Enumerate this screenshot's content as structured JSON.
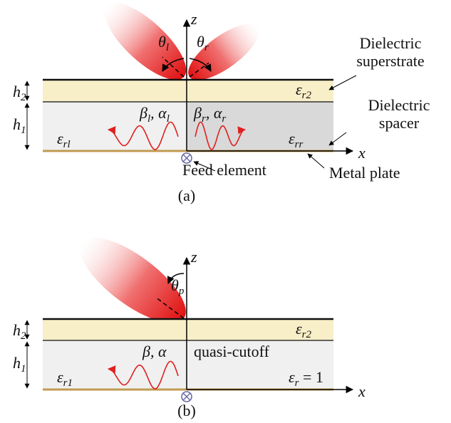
{
  "panel_a": {
    "caption": "(a)",
    "z": "z",
    "x": "x",
    "theta_l": [
      "θ",
      "l"
    ],
    "theta_r": [
      "θ",
      "r"
    ],
    "superstrate": [
      "Dielectric",
      "superstrate"
    ],
    "spacer": [
      "Dielectric",
      "spacer"
    ],
    "h2": [
      "h",
      "2"
    ],
    "h1": [
      "h",
      "1"
    ],
    "eps_r2": [
      "ε",
      "r2"
    ],
    "beta_l": [
      "β",
      "l",
      ", α",
      "l"
    ],
    "beta_r": [
      "β",
      "r",
      ", α",
      "r"
    ],
    "eps_rl": [
      "ε",
      "rl"
    ],
    "eps_rr": [
      "ε",
      "rr"
    ],
    "feed": "Feed element",
    "metal": "Metal plate"
  },
  "panel_b": {
    "caption": "(b)",
    "z": "z",
    "x": "x",
    "theta_p": [
      "θ",
      "p"
    ],
    "h2": [
      "h",
      "2"
    ],
    "h1": [
      "h",
      "1"
    ],
    "eps_r2": [
      "ε",
      "r2"
    ],
    "beta": [
      "β, α"
    ],
    "cutoff": "quasi-cutoff",
    "eps_r1": [
      "ε",
      "r1"
    ],
    "eps_r": [
      "ε",
      "r",
      " = 1"
    ]
  }
}
